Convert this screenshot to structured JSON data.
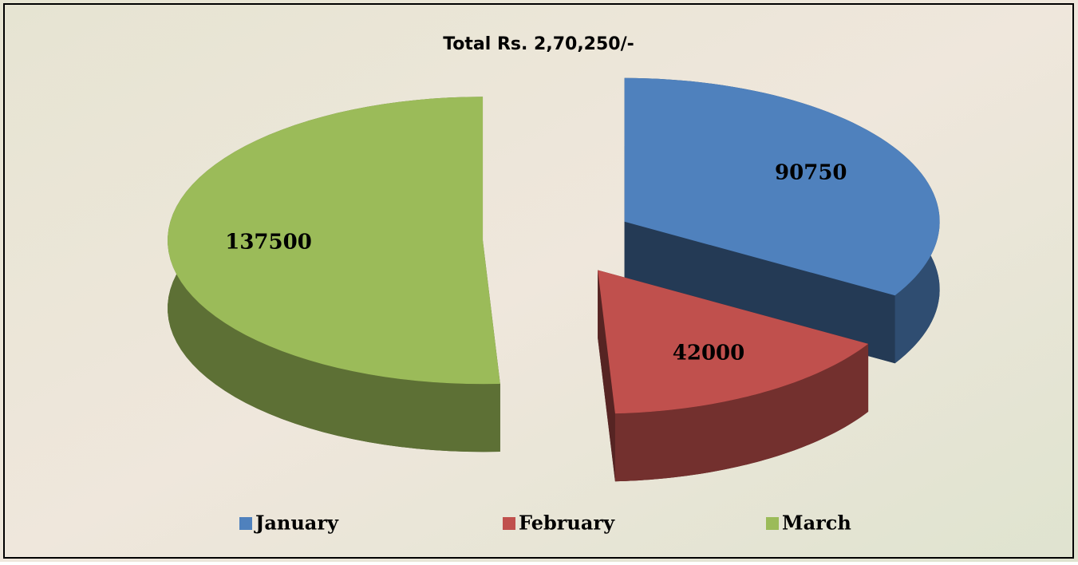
{
  "chart_data": {
    "type": "pie",
    "title": "Total Rs. 2,70,250/-",
    "categories": [
      "January",
      "February",
      "March"
    ],
    "series": [
      {
        "values": [
          90750,
          42000,
          137500
        ],
        "colors": [
          "#4f81bd",
          "#c0504d",
          "#9bbb59"
        ]
      }
    ],
    "legend": "bottom"
  }
}
